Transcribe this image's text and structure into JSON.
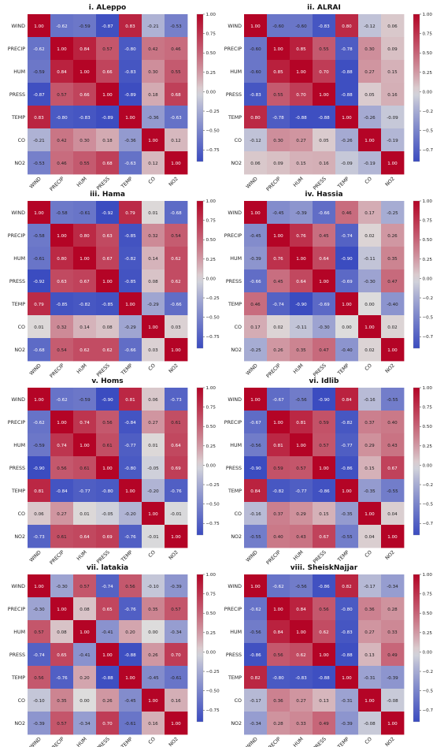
{
  "colorbar": {
    "ticks": [
      "1.00",
      "0.75",
      "0.50",
      "0.25",
      "0.00",
      "−0.25",
      "−0.50",
      "−0.75"
    ],
    "min": -0.9,
    "max": 1.0,
    "colors": {
      "cold": "#3b4cc0",
      "mid": "#dddcdc",
      "warm": "#b40426"
    }
  },
  "chart_data": [
    {
      "type": "heatmap",
      "title": "i. ALeppo",
      "labels": [
        "WIND",
        "PRECIP",
        "HUM",
        "PRESS",
        "TEMP",
        "CO",
        "NO2"
      ],
      "values": [
        [
          1.0,
          -0.62,
          -0.59,
          -0.87,
          0.83,
          -0.21,
          -0.53
        ],
        [
          -0.62,
          1.0,
          0.84,
          0.57,
          -0.8,
          0.42,
          0.46
        ],
        [
          -0.59,
          0.84,
          1.0,
          0.66,
          -0.83,
          0.3,
          0.55
        ],
        [
          -0.87,
          0.57,
          0.66,
          1.0,
          -0.89,
          0.18,
          0.68
        ],
        [
          0.83,
          -0.8,
          -0.83,
          -0.89,
          1.0,
          -0.36,
          -0.63
        ],
        [
          -0.21,
          0.42,
          0.3,
          0.18,
          -0.36,
          1.0,
          0.12
        ],
        [
          -0.53,
          0.46,
          0.55,
          0.68,
          -0.63,
          0.12,
          1.0
        ]
      ]
    },
    {
      "type": "heatmap",
      "title": "ii. ALRAI",
      "labels": [
        "WIND",
        "PRECIP",
        "HUM",
        "PRESS",
        "TEMP",
        "CO",
        "NO2"
      ],
      "values": [
        [
          1.0,
          -0.6,
          -0.6,
          -0.83,
          0.8,
          -0.12,
          0.06
        ],
        [
          -0.6,
          1.0,
          0.85,
          0.55,
          -0.78,
          0.3,
          0.09
        ],
        [
          -0.6,
          0.85,
          1.0,
          0.7,
          -0.88,
          0.27,
          0.15
        ],
        [
          -0.83,
          0.55,
          0.7,
          1.0,
          -0.88,
          0.05,
          0.16
        ],
        [
          0.8,
          -0.78,
          -0.88,
          -0.88,
          1.0,
          -0.26,
          -0.09
        ],
        [
          -0.12,
          0.3,
          0.27,
          0.05,
          -0.26,
          1.0,
          -0.19
        ],
        [
          0.06,
          0.09,
          0.15,
          0.16,
          -0.09,
          -0.19,
          1.0
        ]
      ]
    },
    {
      "type": "heatmap",
      "title": "iii. Hama",
      "labels": [
        "WIND",
        "PRECIP",
        "HUM",
        "PRESS",
        "TEMP",
        "CO",
        "NO2"
      ],
      "values": [
        [
          1.0,
          -0.58,
          -0.61,
          -0.92,
          0.79,
          0.01,
          -0.68
        ],
        [
          -0.58,
          1.0,
          0.8,
          0.63,
          -0.85,
          0.32,
          0.54
        ],
        [
          -0.61,
          0.8,
          1.0,
          0.67,
          -0.82,
          0.14,
          0.62
        ],
        [
          -0.92,
          0.63,
          0.67,
          1.0,
          -0.85,
          0.08,
          0.62
        ],
        [
          0.79,
          -0.85,
          -0.82,
          -0.85,
          1.0,
          -0.29,
          -0.66
        ],
        [
          0.01,
          0.32,
          0.14,
          0.08,
          -0.29,
          1.0,
          0.03
        ],
        [
          -0.68,
          0.54,
          0.62,
          0.62,
          -0.66,
          0.03,
          1.0
        ]
      ]
    },
    {
      "type": "heatmap",
      "title": "iv. Hassia",
      "labels": [
        "WIND",
        "PRECIP",
        "HUM",
        "PRESS",
        "TEMP",
        "CO",
        "NO2"
      ],
      "values": [
        [
          1.0,
          -0.45,
          -0.39,
          -0.66,
          0.46,
          0.17,
          -0.25
        ],
        [
          -0.45,
          1.0,
          0.76,
          0.45,
          -0.74,
          0.02,
          0.26
        ],
        [
          -0.39,
          0.76,
          1.0,
          0.64,
          -0.9,
          -0.11,
          0.35
        ],
        [
          -0.66,
          0.45,
          0.64,
          1.0,
          -0.69,
          -0.3,
          0.47
        ],
        [
          0.46,
          -0.74,
          -0.9,
          -0.69,
          1.0,
          0.0,
          -0.4
        ],
        [
          0.17,
          0.02,
          -0.11,
          -0.3,
          0.0,
          1.0,
          0.02
        ],
        [
          -0.25,
          0.26,
          0.35,
          0.47,
          -0.4,
          0.02,
          1.0
        ]
      ]
    },
    {
      "type": "heatmap",
      "title": "v. Homs",
      "labels": [
        "WIND",
        "PRECIP",
        "HUM",
        "PRESS",
        "TEMP",
        "CO",
        "NO2"
      ],
      "values": [
        [
          1.0,
          -0.62,
          -0.59,
          -0.9,
          0.81,
          0.06,
          -0.73
        ],
        [
          -0.62,
          1.0,
          0.74,
          0.56,
          -0.84,
          0.27,
          0.61
        ],
        [
          -0.59,
          0.74,
          1.0,
          0.61,
          -0.77,
          0.01,
          0.64
        ],
        [
          -0.9,
          0.56,
          0.61,
          1.0,
          -0.8,
          -0.05,
          0.69
        ],
        [
          0.81,
          -0.84,
          -0.77,
          -0.8,
          1.0,
          -0.2,
          -0.76
        ],
        [
          0.06,
          0.27,
          0.01,
          -0.05,
          -0.2,
          1.0,
          -0.01
        ],
        [
          -0.73,
          0.61,
          0.64,
          0.69,
          -0.76,
          -0.01,
          1.0
        ]
      ]
    },
    {
      "type": "heatmap",
      "title": "vi. Idlib",
      "labels": [
        "WIND",
        "PRECIP",
        "HUM",
        "PRESS",
        "TEMP",
        "CO",
        "NO2"
      ],
      "values": [
        [
          1.0,
          -0.67,
          -0.56,
          -0.9,
          0.84,
          -0.16,
          -0.55
        ],
        [
          -0.67,
          1.0,
          0.81,
          0.59,
          -0.82,
          0.37,
          0.4
        ],
        [
          -0.56,
          0.81,
          1.0,
          0.57,
          -0.77,
          0.29,
          0.43
        ],
        [
          -0.9,
          0.59,
          0.57,
          1.0,
          -0.86,
          0.15,
          0.67
        ],
        [
          0.84,
          -0.82,
          -0.77,
          -0.86,
          1.0,
          -0.35,
          -0.55
        ],
        [
          -0.16,
          0.37,
          0.29,
          0.15,
          -0.35,
          1.0,
          0.04
        ],
        [
          -0.55,
          0.4,
          0.43,
          0.67,
          -0.55,
          0.04,
          1.0
        ]
      ]
    },
    {
      "type": "heatmap",
      "title": "vii. latakia",
      "labels": [
        "WIND",
        "PRECIP",
        "HUM",
        "PRESS",
        "TEMP",
        "CO",
        "NO2"
      ],
      "values": [
        [
          1.0,
          -0.3,
          0.57,
          -0.74,
          0.56,
          -0.1,
          -0.39
        ],
        [
          -0.3,
          1.0,
          0.08,
          0.65,
          -0.76,
          0.35,
          0.57
        ],
        [
          0.57,
          0.08,
          1.0,
          -0.41,
          0.2,
          0.0,
          -0.34
        ],
        [
          -0.74,
          0.65,
          -0.41,
          1.0,
          -0.88,
          0.26,
          0.7
        ],
        [
          0.56,
          -0.76,
          0.2,
          -0.88,
          1.0,
          -0.45,
          -0.61
        ],
        [
          -0.1,
          0.35,
          0.0,
          0.26,
          -0.45,
          1.0,
          0.16
        ],
        [
          -0.39,
          0.57,
          -0.34,
          0.7,
          -0.61,
          0.16,
          1.0
        ]
      ]
    },
    {
      "type": "heatmap",
      "title": "viii. SheiskNajjar",
      "labels": [
        "WIND",
        "PRECIP",
        "HUM",
        "PRESS",
        "TEMP",
        "CO",
        "NO2"
      ],
      "values": [
        [
          1.0,
          -0.62,
          -0.56,
          -0.86,
          0.82,
          -0.17,
          -0.34
        ],
        [
          -0.62,
          1.0,
          0.84,
          0.56,
          -0.8,
          0.36,
          0.28
        ],
        [
          -0.56,
          0.84,
          1.0,
          0.62,
          -0.83,
          0.27,
          0.33
        ],
        [
          -0.86,
          0.56,
          0.62,
          1.0,
          -0.88,
          0.13,
          0.49
        ],
        [
          0.82,
          -0.8,
          -0.83,
          -0.88,
          1.0,
          -0.31,
          -0.39
        ],
        [
          -0.17,
          0.36,
          0.27,
          0.13,
          -0.31,
          1.0,
          -0.08
        ],
        [
          -0.34,
          0.28,
          0.33,
          0.49,
          -0.39,
          -0.08,
          1.0
        ]
      ]
    }
  ]
}
